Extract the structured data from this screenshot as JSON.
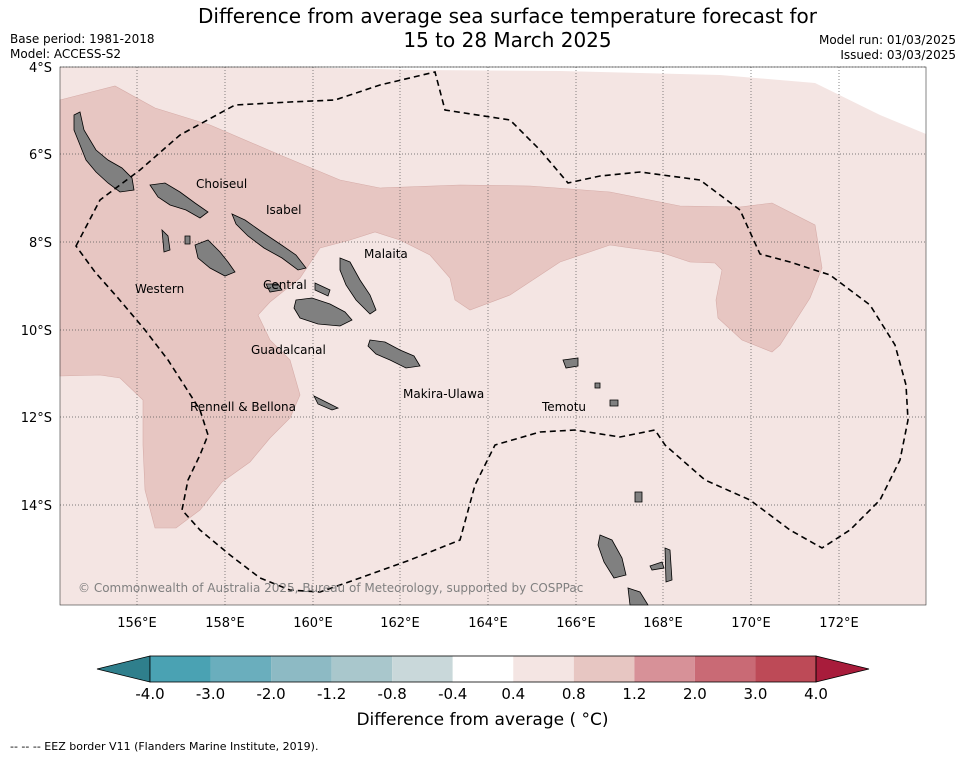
{
  "title": {
    "line1": "Difference from average sea surface temperature forecast for",
    "line2": "15 to 28 March 2025"
  },
  "meta_left": {
    "base_period": "Base period: 1981-2018",
    "model": "Model: ACCESS-S2"
  },
  "meta_right": {
    "model_run": "Model run: 01/03/2025",
    "issued": "Issued: 03/03/2025"
  },
  "map": {
    "lat_labels": [
      "4°S",
      "6°S",
      "8°S",
      "10°S",
      "12°S",
      "14°S"
    ],
    "lon_labels": [
      "156°E",
      "158°E",
      "160°E",
      "162°E",
      "164°E",
      "166°E",
      "168°E",
      "170°E",
      "172°E"
    ],
    "places": [
      "Choiseul",
      "Isabel",
      "Malaita",
      "Western",
      "Central",
      "Guadalcanal",
      "Rennell & Bellona",
      "Makira-Ulawa",
      "Temotu"
    ],
    "copyright": "© Commonwealth of Australia 2025, Bureau of Meteorology, supported by COSPPac",
    "colors": {
      "ocean_0_4_to_0_8": "#f4e5e3",
      "ocean_0_8_to_1_2": "#e7c6c2",
      "land": "#808080",
      "eez_border": "#000000"
    }
  },
  "colorbar": {
    "ticks": [
      "-4.0",
      "-3.0",
      "-2.0",
      "-1.2",
      "-0.8",
      "-0.4",
      "0.4",
      "0.8",
      "1.2",
      "2.0",
      "3.0",
      "4.0"
    ],
    "colors": [
      "#2f7f8c",
      "#4aa2b3",
      "#6aaebd",
      "#8dbac4",
      "#a9c7cc",
      "#c9d8da",
      "#ffffff",
      "#f4e5e3",
      "#e7c6c2",
      "#d79198",
      "#c96a75",
      "#bd4a57",
      "#a81c3b"
    ],
    "title": "Difference from average ( °C)"
  },
  "legend_note": "--  --  -- EEZ border V11 (Flanders Marine Institute, 2019)."
}
